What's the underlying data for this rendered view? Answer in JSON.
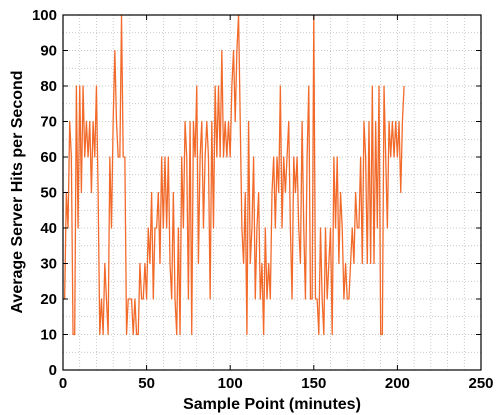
{
  "chart_data": {
    "type": "line",
    "title": "",
    "xlabel": "Sample Point (minutes)",
    "ylabel": "Average Server Hits per Second",
    "xlim": [
      0,
      250
    ],
    "ylim": [
      0,
      100
    ],
    "xticks": [
      0,
      50,
      100,
      150,
      200,
      250
    ],
    "yticks": [
      0,
      10,
      20,
      30,
      40,
      50,
      60,
      70,
      80,
      90,
      100
    ],
    "grid": true,
    "line_color": "#f26a2a",
    "series": [
      {
        "x": [
          0,
          1,
          2,
          3,
          4,
          5,
          6,
          7,
          8,
          9,
          10,
          11,
          12,
          13,
          14,
          15,
          16,
          17,
          18,
          19,
          20,
          21,
          22,
          23,
          24,
          25,
          26,
          27,
          28,
          29,
          30,
          31,
          32,
          33,
          34,
          35,
          36,
          37,
          38,
          39,
          40,
          41,
          42,
          43,
          44,
          45,
          46,
          47,
          48,
          49,
          50,
          51,
          52,
          53,
          54,
          55,
          56,
          57,
          58,
          59,
          60,
          61,
          62,
          63,
          64,
          65,
          66,
          67,
          68,
          69,
          70,
          71,
          72,
          73,
          74,
          75,
          76,
          77,
          78,
          79,
          80,
          81,
          82,
          83,
          84,
          85,
          86,
          87,
          88,
          89,
          90,
          91,
          92,
          93,
          94,
          95,
          96,
          97,
          98,
          99,
          100,
          101,
          102,
          103,
          104,
          105,
          106,
          107,
          108,
          109,
          110,
          111,
          112,
          113,
          114,
          115,
          116,
          117,
          118,
          119,
          120,
          121,
          122,
          123,
          124,
          125,
          126,
          127,
          128,
          129,
          130,
          131,
          132,
          133,
          134,
          135,
          136,
          137,
          138,
          139,
          140,
          141,
          142,
          143,
          144,
          145,
          146,
          147,
          148,
          149,
          150,
          151,
          152,
          153,
          154,
          155,
          156,
          157,
          158,
          159,
          160,
          161,
          162,
          163,
          164,
          165,
          166,
          167,
          168,
          169,
          170,
          171,
          172,
          173,
          174,
          175,
          176,
          177,
          178,
          179,
          180,
          181,
          182,
          183,
          184,
          185,
          186,
          187,
          188,
          189,
          190,
          191,
          192,
          193,
          194,
          195,
          196,
          197,
          198,
          199,
          200,
          201,
          202,
          203,
          204
        ],
        "y": [
          20,
          20,
          50,
          40,
          70,
          60,
          10,
          10,
          80,
          40,
          80,
          50,
          80,
          60,
          70,
          60,
          70,
          50,
          70,
          60,
          80,
          50,
          10,
          20,
          10,
          30,
          20,
          10,
          60,
          40,
          70,
          90,
          70,
          60,
          60,
          100,
          60,
          60,
          10,
          20,
          20,
          20,
          10,
          20,
          10,
          10,
          30,
          20,
          20,
          30,
          20,
          40,
          30,
          50,
          20,
          40,
          40,
          50,
          30,
          60,
          40,
          60,
          40,
          60,
          30,
          20,
          50,
          20,
          10,
          40,
          10,
          60,
          40,
          70,
          60,
          20,
          70,
          10,
          70,
          60,
          80,
          30,
          60,
          70,
          40,
          60,
          70,
          60,
          20,
          70,
          40,
          80,
          60,
          80,
          60,
          90,
          60,
          70,
          60,
          70,
          60,
          80,
          90,
          70,
          90,
          100,
          70,
          40,
          30,
          50,
          10,
          70,
          30,
          40,
          60,
          20,
          40,
          50,
          20,
          30,
          10,
          40,
          20,
          30,
          20,
          50,
          60,
          40,
          60,
          50,
          80,
          40,
          60,
          50,
          60,
          70,
          40,
          20,
          60,
          50,
          60,
          40,
          30,
          70,
          40,
          20,
          60,
          80,
          20,
          20,
          100,
          20,
          20,
          10,
          40,
          20,
          10,
          40,
          20,
          30,
          40,
          10,
          60,
          40,
          60,
          30,
          50,
          40,
          20,
          30,
          20,
          20,
          30,
          40,
          30,
          50,
          40,
          40,
          60,
          30,
          70,
          60,
          30,
          70,
          30,
          80,
          30,
          70,
          40,
          80,
          10,
          10,
          80,
          60,
          40,
          70,
          60,
          70,
          60,
          70,
          60,
          70,
          50,
          70,
          80
        ]
      }
    ]
  }
}
